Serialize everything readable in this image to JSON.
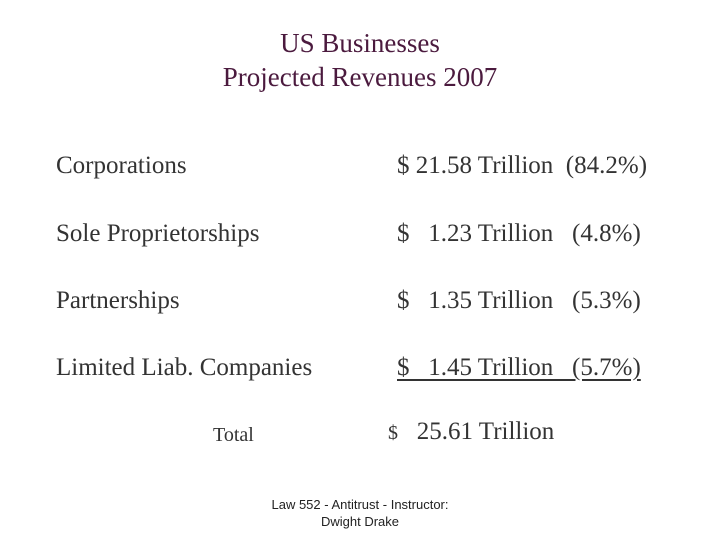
{
  "title": {
    "line1": "US Businesses",
    "line2": "Projected Revenues 2007"
  },
  "rows": [
    {
      "label": "Corporations",
      "value": "$ 21.58 Trillion  (84.2%)"
    },
    {
      "label": "Sole Proprietorships",
      "value": "$   1.23 Trillion   (4.8%)"
    },
    {
      "label": "Partnerships",
      "value": "$   1.35 Trillion   (5.3%)"
    },
    {
      "label": "Limited Liab. Companies",
      "value": "$   1.45 Trillion   (5.7%)"
    }
  ],
  "total": {
    "label": "Total",
    "currency": "$",
    "value": "25.61 Trillion"
  },
  "footer": {
    "line1": "Law 552 - Antitrust - Instructor:",
    "line2": "Dwight Drake"
  },
  "colors": {
    "title": "#4b1a3e",
    "text": "#333333"
  }
}
